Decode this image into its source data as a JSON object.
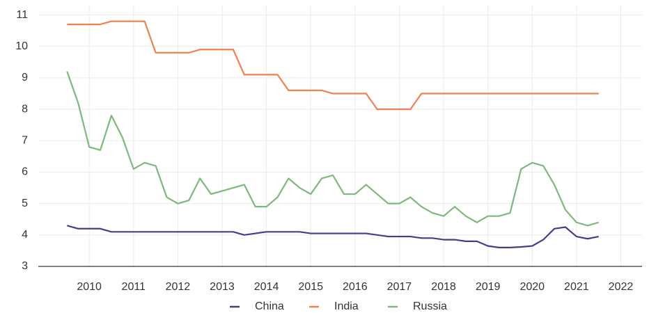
{
  "chart_data": {
    "type": "line",
    "x": [
      2009.5,
      2009.75,
      2010,
      2010.25,
      2010.5,
      2010.75,
      2011,
      2011.25,
      2011.5,
      2011.75,
      2012,
      2012.25,
      2012.5,
      2012.75,
      2013,
      2013.25,
      2013.5,
      2013.75,
      2014,
      2014.25,
      2014.5,
      2014.75,
      2015,
      2015.25,
      2015.5,
      2015.75,
      2016,
      2016.25,
      2016.5,
      2016.75,
      2017,
      2017.25,
      2017.5,
      2017.75,
      2018,
      2018.25,
      2018.5,
      2018.75,
      2019,
      2019.25,
      2019.5,
      2019.75,
      2020,
      2020.25,
      2020.5,
      2020.75,
      2021,
      2021.25,
      2021.5
    ],
    "series": [
      {
        "name": "China",
        "color": "#4b3a8c",
        "values": [
          4.3,
          4.2,
          4.2,
          4.2,
          4.1,
          4.1,
          4.1,
          4.1,
          4.1,
          4.1,
          4.1,
          4.1,
          4.1,
          4.1,
          4.1,
          4.1,
          4.0,
          4.05,
          4.1,
          4.1,
          4.1,
          4.1,
          4.05,
          4.05,
          4.05,
          4.05,
          4.05,
          4.05,
          4.0,
          3.95,
          3.95,
          3.95,
          3.9,
          3.9,
          3.85,
          3.85,
          3.8,
          3.8,
          3.65,
          3.6,
          3.6,
          3.62,
          3.65,
          3.85,
          4.2,
          4.25,
          3.95,
          3.88,
          3.95
        ]
      },
      {
        "name": "India",
        "color": "#f08050",
        "values": [
          10.7,
          10.7,
          10.7,
          10.7,
          10.8,
          10.8,
          10.8,
          10.8,
          9.8,
          9.8,
          9.8,
          9.8,
          9.9,
          9.9,
          9.9,
          9.9,
          9.1,
          9.1,
          9.1,
          9.1,
          8.6,
          8.6,
          8.6,
          8.6,
          8.5,
          8.5,
          8.5,
          8.5,
          8.0,
          8.0,
          8.0,
          8.0,
          8.5,
          8.5,
          8.5,
          8.5,
          8.5,
          8.5,
          8.5,
          8.5,
          8.5,
          8.5,
          8.5,
          8.5,
          8.5,
          8.5,
          8.5,
          8.5,
          8.5
        ]
      },
      {
        "name": "Russia",
        "color": "#7db87d",
        "values": [
          9.2,
          8.2,
          6.8,
          6.7,
          7.8,
          7.1,
          6.1,
          6.3,
          6.2,
          5.2,
          5.0,
          5.1,
          5.8,
          5.3,
          5.4,
          5.5,
          5.6,
          4.9,
          4.9,
          5.2,
          5.8,
          5.5,
          5.3,
          5.8,
          5.9,
          5.3,
          5.3,
          5.6,
          5.3,
          5.0,
          5.0,
          5.2,
          4.9,
          4.7,
          4.6,
          4.9,
          4.6,
          4.4,
          4.6,
          4.6,
          4.7,
          6.1,
          6.3,
          6.2,
          5.6,
          4.8,
          4.4,
          4.3,
          4.4
        ]
      }
    ],
    "xlim": [
      2008.85,
      2022.48
    ],
    "xticks": [
      2010,
      2011,
      2012,
      2013,
      2014,
      2015,
      2016,
      2017,
      2018,
      2019,
      2020,
      2021,
      2022
    ],
    "ylim": [
      3,
      11.3
    ],
    "yticks": [
      3,
      4,
      5,
      6,
      7,
      8,
      9,
      10,
      11
    ],
    "grid": true,
    "legend": "bottom"
  }
}
